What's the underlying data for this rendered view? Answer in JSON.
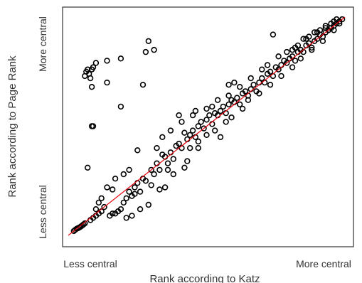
{
  "chart_data": {
    "type": "scatter",
    "xlabel": "Rank according to Katz",
    "ylabel": "Rank according to Page Rank",
    "x_tick_labels": [
      "Less central",
      "More central"
    ],
    "y_tick_labels": [
      "Less central",
      "More central"
    ],
    "xlim": [
      0,
      1
    ],
    "ylim": [
      0,
      1
    ],
    "grid": false,
    "reference_line": {
      "from": [
        0.0,
        0.0
      ],
      "to": [
        1.0,
        1.0
      ],
      "color": "#e8000b"
    },
    "marker_color": "#000000",
    "points": [
      [
        0.02,
        0.02
      ],
      [
        0.025,
        0.025
      ],
      [
        0.03,
        0.03
      ],
      [
        0.035,
        0.033
      ],
      [
        0.04,
        0.036
      ],
      [
        0.045,
        0.04
      ],
      [
        0.05,
        0.045
      ],
      [
        0.055,
        0.05
      ],
      [
        0.06,
        0.055
      ],
      [
        0.08,
        0.07
      ],
      [
        0.09,
        0.08
      ],
      [
        0.1,
        0.09
      ],
      [
        0.12,
        0.11
      ],
      [
        0.13,
        0.13
      ],
      [
        0.11,
        0.1
      ],
      [
        0.15,
        0.09
      ],
      [
        0.16,
        0.1
      ],
      [
        0.17,
        0.1
      ],
      [
        0.18,
        0.11
      ],
      [
        0.19,
        0.12
      ],
      [
        0.2,
        0.15
      ],
      [
        0.21,
        0.17
      ],
      [
        0.22,
        0.2
      ],
      [
        0.23,
        0.18
      ],
      [
        0.24,
        0.22
      ],
      [
        0.25,
        0.24
      ],
      [
        0.26,
        0.2
      ],
      [
        0.27,
        0.26
      ],
      [
        0.28,
        0.25
      ],
      [
        0.3,
        0.23
      ],
      [
        0.3,
        0.3
      ],
      [
        0.31,
        0.28
      ],
      [
        0.32,
        0.33
      ],
      [
        0.33,
        0.3
      ],
      [
        0.34,
        0.37
      ],
      [
        0.35,
        0.36
      ],
      [
        0.36,
        0.33
      ],
      [
        0.37,
        0.38
      ],
      [
        0.38,
        0.35
      ],
      [
        0.39,
        0.41
      ],
      [
        0.4,
        0.42
      ],
      [
        0.41,
        0.4
      ],
      [
        0.42,
        0.47
      ],
      [
        0.43,
        0.44
      ],
      [
        0.44,
        0.46
      ],
      [
        0.45,
        0.48
      ],
      [
        0.46,
        0.45
      ],
      [
        0.47,
        0.5
      ],
      [
        0.48,
        0.52
      ],
      [
        0.49,
        0.49
      ],
      [
        0.5,
        0.53
      ],
      [
        0.51,
        0.55
      ],
      [
        0.52,
        0.51
      ],
      [
        0.53,
        0.56
      ],
      [
        0.54,
        0.55
      ],
      [
        0.55,
        0.57
      ],
      [
        0.56,
        0.59
      ],
      [
        0.57,
        0.56
      ],
      [
        0.58,
        0.6
      ],
      [
        0.59,
        0.62
      ],
      [
        0.6,
        0.61
      ],
      [
        0.61,
        0.63
      ],
      [
        0.62,
        0.6
      ],
      [
        0.63,
        0.65
      ],
      [
        0.64,
        0.66
      ],
      [
        0.65,
        0.64
      ],
      [
        0.66,
        0.67
      ],
      [
        0.67,
        0.69
      ],
      [
        0.68,
        0.66
      ],
      [
        0.69,
        0.7
      ],
      [
        0.7,
        0.72
      ],
      [
        0.71,
        0.7
      ],
      [
        0.72,
        0.74
      ],
      [
        0.73,
        0.75
      ],
      [
        0.74,
        0.73
      ],
      [
        0.75,
        0.77
      ],
      [
        0.76,
        0.76
      ],
      [
        0.77,
        0.78
      ],
      [
        0.78,
        0.8
      ],
      [
        0.79,
        0.79
      ],
      [
        0.8,
        0.81
      ],
      [
        0.81,
        0.82
      ],
      [
        0.82,
        0.8
      ],
      [
        0.83,
        0.84
      ],
      [
        0.84,
        0.85
      ],
      [
        0.85,
        0.84
      ],
      [
        0.86,
        0.87
      ],
      [
        0.87,
        0.88
      ],
      [
        0.88,
        0.86
      ],
      [
        0.89,
        0.89
      ],
      [
        0.9,
        0.9
      ],
      [
        0.91,
        0.92
      ],
      [
        0.92,
        0.91
      ],
      [
        0.93,
        0.93
      ],
      [
        0.94,
        0.94
      ],
      [
        0.95,
        0.95
      ],
      [
        0.96,
        0.96
      ],
      [
        0.97,
        0.97
      ],
      [
        0.98,
        0.98
      ],
      [
        0.99,
        0.99
      ],
      [
        0.97,
        0.99
      ],
      [
        0.95,
        0.97
      ],
      [
        0.93,
        0.95
      ],
      [
        0.91,
        0.94
      ],
      [
        0.89,
        0.93
      ],
      [
        0.87,
        0.91
      ],
      [
        0.85,
        0.9
      ],
      [
        0.83,
        0.87
      ],
      [
        0.81,
        0.85
      ],
      [
        0.06,
        0.73
      ],
      [
        0.065,
        0.75
      ],
      [
        0.07,
        0.76
      ],
      [
        0.075,
        0.74
      ],
      [
        0.08,
        0.72
      ],
      [
        0.085,
        0.76
      ],
      [
        0.09,
        0.77
      ],
      [
        0.1,
        0.79
      ],
      [
        0.085,
        0.68
      ],
      [
        0.14,
        0.8
      ],
      [
        0.19,
        0.81
      ],
      [
        0.14,
        0.7
      ],
      [
        0.19,
        0.59
      ],
      [
        0.27,
        0.69
      ],
      [
        0.28,
        0.84
      ],
      [
        0.29,
        0.89
      ],
      [
        0.31,
        0.85
      ],
      [
        0.09,
        0.5
      ],
      [
        0.085,
        0.5
      ],
      [
        0.07,
        0.31
      ],
      [
        0.58,
        0.69
      ],
      [
        0.74,
        0.92
      ],
      [
        0.25,
        0.39
      ],
      [
        0.34,
        0.45
      ],
      [
        0.4,
        0.55
      ],
      [
        0.46,
        0.57
      ],
      [
        0.52,
        0.59
      ],
      [
        0.6,
        0.7
      ],
      [
        0.44,
        0.4
      ],
      [
        0.5,
        0.46
      ],
      [
        0.57,
        0.52
      ],
      [
        0.63,
        0.58
      ],
      [
        0.36,
        0.3
      ],
      [
        0.43,
        0.34
      ],
      [
        0.55,
        0.45
      ],
      [
        0.47,
        0.4
      ],
      [
        0.38,
        0.28
      ],
      [
        0.33,
        0.21
      ],
      [
        0.29,
        0.14
      ],
      [
        0.26,
        0.12
      ],
      [
        0.23,
        0.09
      ],
      [
        0.21,
        0.08
      ],
      [
        0.24,
        0.19
      ],
      [
        0.35,
        0.22
      ],
      [
        0.42,
        0.31
      ],
      [
        0.47,
        0.43
      ],
      [
        0.53,
        0.48
      ],
      [
        0.59,
        0.54
      ],
      [
        0.65,
        0.62
      ],
      [
        0.69,
        0.65
      ],
      [
        0.73,
        0.69
      ],
      [
        0.77,
        0.73
      ],
      [
        0.81,
        0.77
      ],
      [
        0.84,
        0.81
      ],
      [
        0.88,
        0.85
      ],
      [
        0.92,
        0.89
      ],
      [
        0.96,
        0.94
      ],
      [
        0.98,
        0.97
      ],
      [
        0.2,
        0.28
      ],
      [
        0.22,
        0.3
      ],
      [
        0.17,
        0.26
      ],
      [
        0.14,
        0.22
      ],
      [
        0.12,
        0.17
      ],
      [
        0.11,
        0.15
      ],
      [
        0.1,
        0.12
      ],
      [
        0.16,
        0.21
      ],
      [
        0.32,
        0.4
      ],
      [
        0.37,
        0.48
      ],
      [
        0.41,
        0.52
      ],
      [
        0.45,
        0.55
      ],
      [
        0.5,
        0.58
      ],
      [
        0.54,
        0.62
      ],
      [
        0.58,
        0.64
      ],
      [
        0.62,
        0.68
      ],
      [
        0.66,
        0.72
      ],
      [
        0.7,
        0.76
      ],
      [
        0.72,
        0.78
      ],
      [
        0.76,
        0.82
      ],
      [
        0.79,
        0.84
      ],
      [
        0.82,
        0.86
      ],
      [
        0.86,
        0.9
      ],
      [
        0.9,
        0.93
      ],
      [
        0.93,
        0.96
      ],
      [
        0.96,
        0.98
      ]
    ]
  }
}
